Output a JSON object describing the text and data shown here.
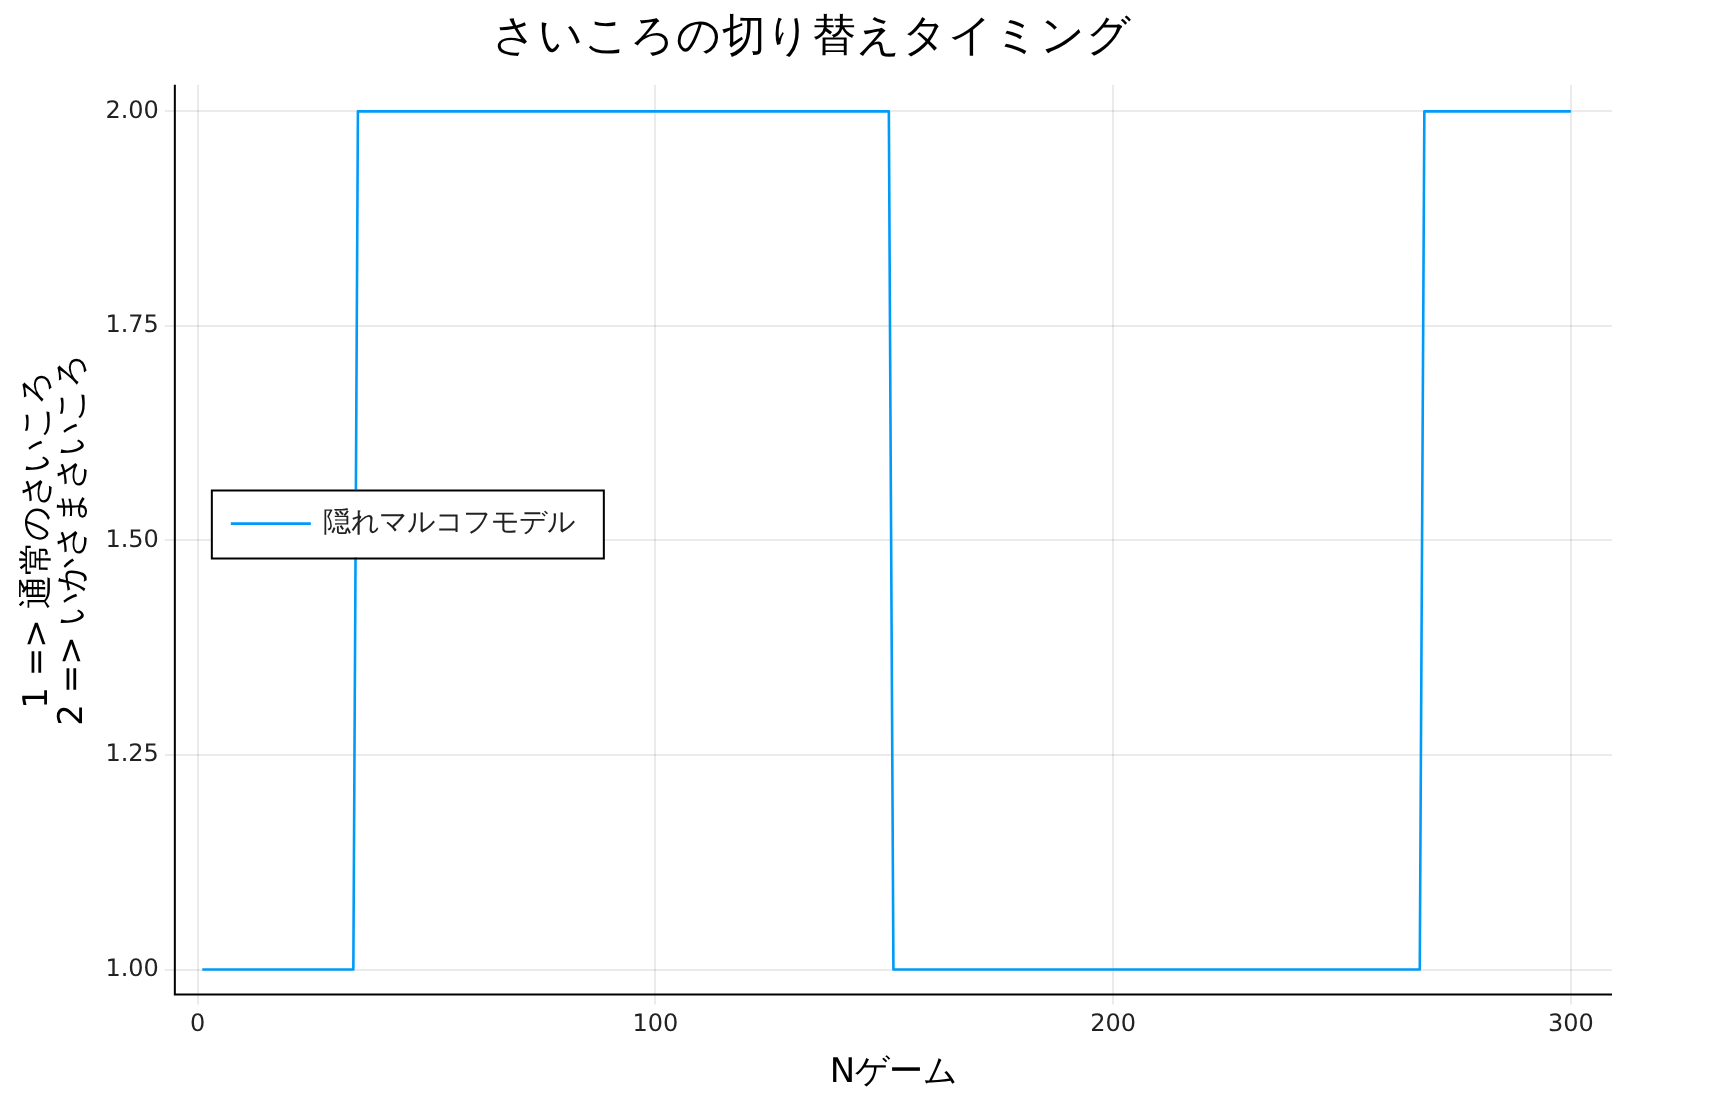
{
  "chart_data": {
    "type": "line",
    "title": "さいころの切り替えタイミング",
    "xlabel": "Nゲーム",
    "ylabel": "1 => 通常のさいころ\n2 => いかさまさいころ",
    "x": [
      1,
      34,
      35,
      151,
      152,
      267,
      268,
      300
    ],
    "series": [
      {
        "name": "隠れマルコフモデル",
        "color": "#009af9",
        "values": [
          1,
          1,
          2,
          2,
          1,
          1,
          2,
          2
        ]
      }
    ],
    "xlim": [
      -5,
      309
    ],
    "xticks": [
      0,
      100,
      200,
      300
    ],
    "ylim": [
      0.971,
      2.031
    ],
    "yticks": [
      {
        "value": 1,
        "label": "1.00"
      },
      {
        "value": 1.25,
        "label": "1.25"
      },
      {
        "value": 1.5,
        "label": "1.50"
      },
      {
        "value": 1.75,
        "label": "1.75"
      },
      {
        "value": 2,
        "label": "2.00"
      }
    ],
    "grid": true,
    "legend": "left",
    "marker": "none",
    "line_style": "solid"
  }
}
